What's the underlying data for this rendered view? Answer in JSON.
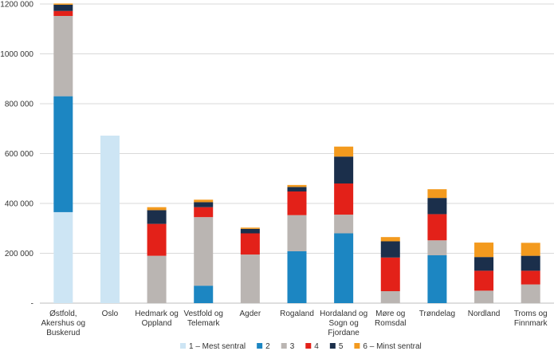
{
  "chart_data": {
    "type": "bar",
    "stacked": true,
    "categories": [
      "Østfold, Akershus og Buskerud",
      "Oslo",
      "Hedmark og Oppland",
      "Vestfold og Telemark",
      "Agder",
      "Rogaland",
      "Hordaland og Sogn og Fjordane",
      "Møre og Romsdal",
      "Trøndelag",
      "Nordland",
      "Troms og Finnmark"
    ],
    "category_lines": [
      [
        "Østfold,",
        "Akershus og",
        "Buskerud"
      ],
      [
        "Oslo"
      ],
      [
        "Hedmark og",
        "Oppland"
      ],
      [
        "Vestfold og",
        "Telemark"
      ],
      [
        "Agder"
      ],
      [
        "Rogaland"
      ],
      [
        "Hordaland og",
        "Sogn og",
        "Fjordane"
      ],
      [
        "Møre og",
        "Romsdal"
      ],
      [
        "Trøndelag"
      ],
      [
        "Nordland"
      ],
      [
        "Troms og",
        "Finnmark"
      ]
    ],
    "series": [
      {
        "name": "1 – Mest sentral",
        "color": "#cde5f4",
        "values": [
          365000,
          672000,
          0,
          0,
          0,
          0,
          0,
          0,
          0,
          0,
          0
        ]
      },
      {
        "name": "2",
        "color": "#1c86c2",
        "values": [
          465000,
          0,
          0,
          70000,
          0,
          208000,
          280000,
          0,
          192000,
          0,
          0
        ]
      },
      {
        "name": "3",
        "color": "#bab5b2",
        "values": [
          322000,
          0,
          190000,
          275000,
          195000,
          145000,
          75000,
          48000,
          60000,
          50000,
          75000
        ]
      },
      {
        "name": "4",
        "color": "#e32119",
        "values": [
          20000,
          0,
          128000,
          40000,
          85000,
          95000,
          125000,
          135000,
          105000,
          80000,
          55000
        ]
      },
      {
        "name": "5",
        "color": "#1b2f4b",
        "values": [
          25000,
          0,
          55000,
          20000,
          18000,
          18000,
          108000,
          65000,
          65000,
          55000,
          60000
        ]
      },
      {
        "name": "6 – Minst sentral",
        "color": "#f39a1e",
        "values": [
          5000,
          0,
          12000,
          10000,
          5000,
          8000,
          40000,
          17000,
          35000,
          58000,
          52000
        ]
      }
    ],
    "y_ticks": [
      "-",
      "200 000",
      "400 000",
      "600 000",
      "800 000",
      "1000 000",
      "1200 000"
    ],
    "ylim": [
      0,
      1200000
    ],
    "grid": true,
    "legend": "bottom"
  }
}
